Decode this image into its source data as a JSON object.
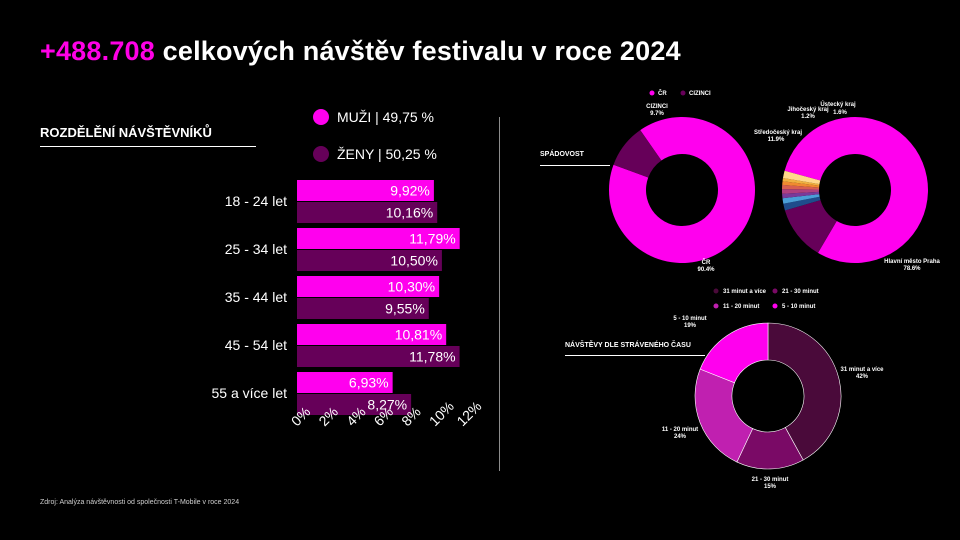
{
  "title": {
    "accent": "+488.708",
    "rest": " celkových návštěv festivalu v roce 2024"
  },
  "visitors": {
    "heading": "ROZDĚLĚNÍ NÁVŠTĚVNÍKŮ",
    "legend": [
      {
        "label": "MUŽI | 49,75 %",
        "color": "#ff00ee"
      },
      {
        "label": "ŽENY | 50,25 %",
        "color": "#660059"
      }
    ]
  },
  "chart_data": [
    {
      "type": "bar",
      "orientation": "horizontal",
      "categories": [
        "18 - 24 let",
        "25 - 34 let",
        "35 - 44 let",
        "45 - 54 let",
        "55 a více let"
      ],
      "series": [
        {
          "name": "MUŽI",
          "values": [
            9.92,
            11.79,
            10.3,
            10.81,
            6.93
          ],
          "labels": [
            "9,92%",
            "11,79%",
            "10,30%",
            "10,81%",
            "6,93%"
          ],
          "color": "#ff00ee"
        },
        {
          "name": "ŽENY",
          "values": [
            10.16,
            10.5,
            9.55,
            11.78,
            8.27
          ],
          "labels": [
            "10,16%",
            "10,50%",
            "9,55%",
            "11,78%",
            "8,27%"
          ],
          "color": "#660059"
        }
      ],
      "xlim": [
        0,
        12
      ],
      "xticks": [
        "0%",
        "2%",
        "4%",
        "6%",
        "8%",
        "10%",
        "12%"
      ]
    },
    {
      "type": "pie",
      "donut": true,
      "title": "SPÁDOVOST",
      "legend": [
        {
          "label": "ČR",
          "color": "#ff00ee"
        },
        {
          "label": "CIZINCI",
          "color": "#660059"
        }
      ],
      "slices": [
        {
          "name": "ČR",
          "value": 90.4,
          "label_name": "ČR",
          "label_value": "90.4%",
          "color": "#ff00ee"
        },
        {
          "name": "CIZINCI",
          "value": 9.7,
          "label_name": "CIZINCI",
          "label_value": "9.7%",
          "color": "#660059"
        }
      ]
    },
    {
      "type": "pie",
      "donut": true,
      "slices": [
        {
          "name": "Hlavní město Praha",
          "value": 78.6,
          "label_value": "78.6%",
          "color": "#ff00ee"
        },
        {
          "name": "Středočeský kraj",
          "value": 11.9,
          "label_value": "11.9%",
          "color": "#660059"
        },
        {
          "name": "",
          "value": 1.5,
          "color": "#1e4c8c"
        },
        {
          "name": "Jihočeský kraj",
          "value": 1.2,
          "label_value": "1.2%",
          "color": "#4a9fd8"
        },
        {
          "name": "",
          "value": 1.0,
          "color": "#7a3a9a"
        },
        {
          "name": "",
          "value": 1.0,
          "color": "#b04080"
        },
        {
          "name": "",
          "value": 0.9,
          "color": "#d86050"
        },
        {
          "name": "",
          "value": 0.8,
          "color": "#f08a30"
        },
        {
          "name": "",
          "value": 0.7,
          "color": "#f0b040"
        },
        {
          "name": "Ústecký kraj",
          "value": 1.6,
          "label_value": "1.6%",
          "color": "#ffd88a"
        }
      ]
    },
    {
      "type": "pie",
      "donut": true,
      "title": "NÁVŠTĚVY DLE STRÁVENÉHO ČASU",
      "legend": [
        {
          "label": "31 minut a více",
          "color": "#4a0a3a"
        },
        {
          "label": "21 - 30 minut",
          "color": "#7a0a66"
        },
        {
          "label": "11 - 20 minut",
          "color": "#c020b0"
        },
        {
          "label": "5 - 10 minut",
          "color": "#ff00ee"
        }
      ],
      "slices": [
        {
          "name": "31 minut a více",
          "value": 42,
          "label_value": "42%",
          "color": "#4a0a3a"
        },
        {
          "name": "21 - 30 minut",
          "value": 15,
          "label_value": "15%",
          "color": "#7a0a66"
        },
        {
          "name": "11 - 20 minut",
          "value": 24,
          "label_value": "24%",
          "color": "#c020b0"
        },
        {
          "name": "5 - 10 minut",
          "value": 19,
          "label_value": "19%",
          "color": "#ff00ee"
        }
      ]
    }
  ],
  "source": "Zdroj: Analýza návštěvnosti od společnosti T-Mobile v roce 2024"
}
